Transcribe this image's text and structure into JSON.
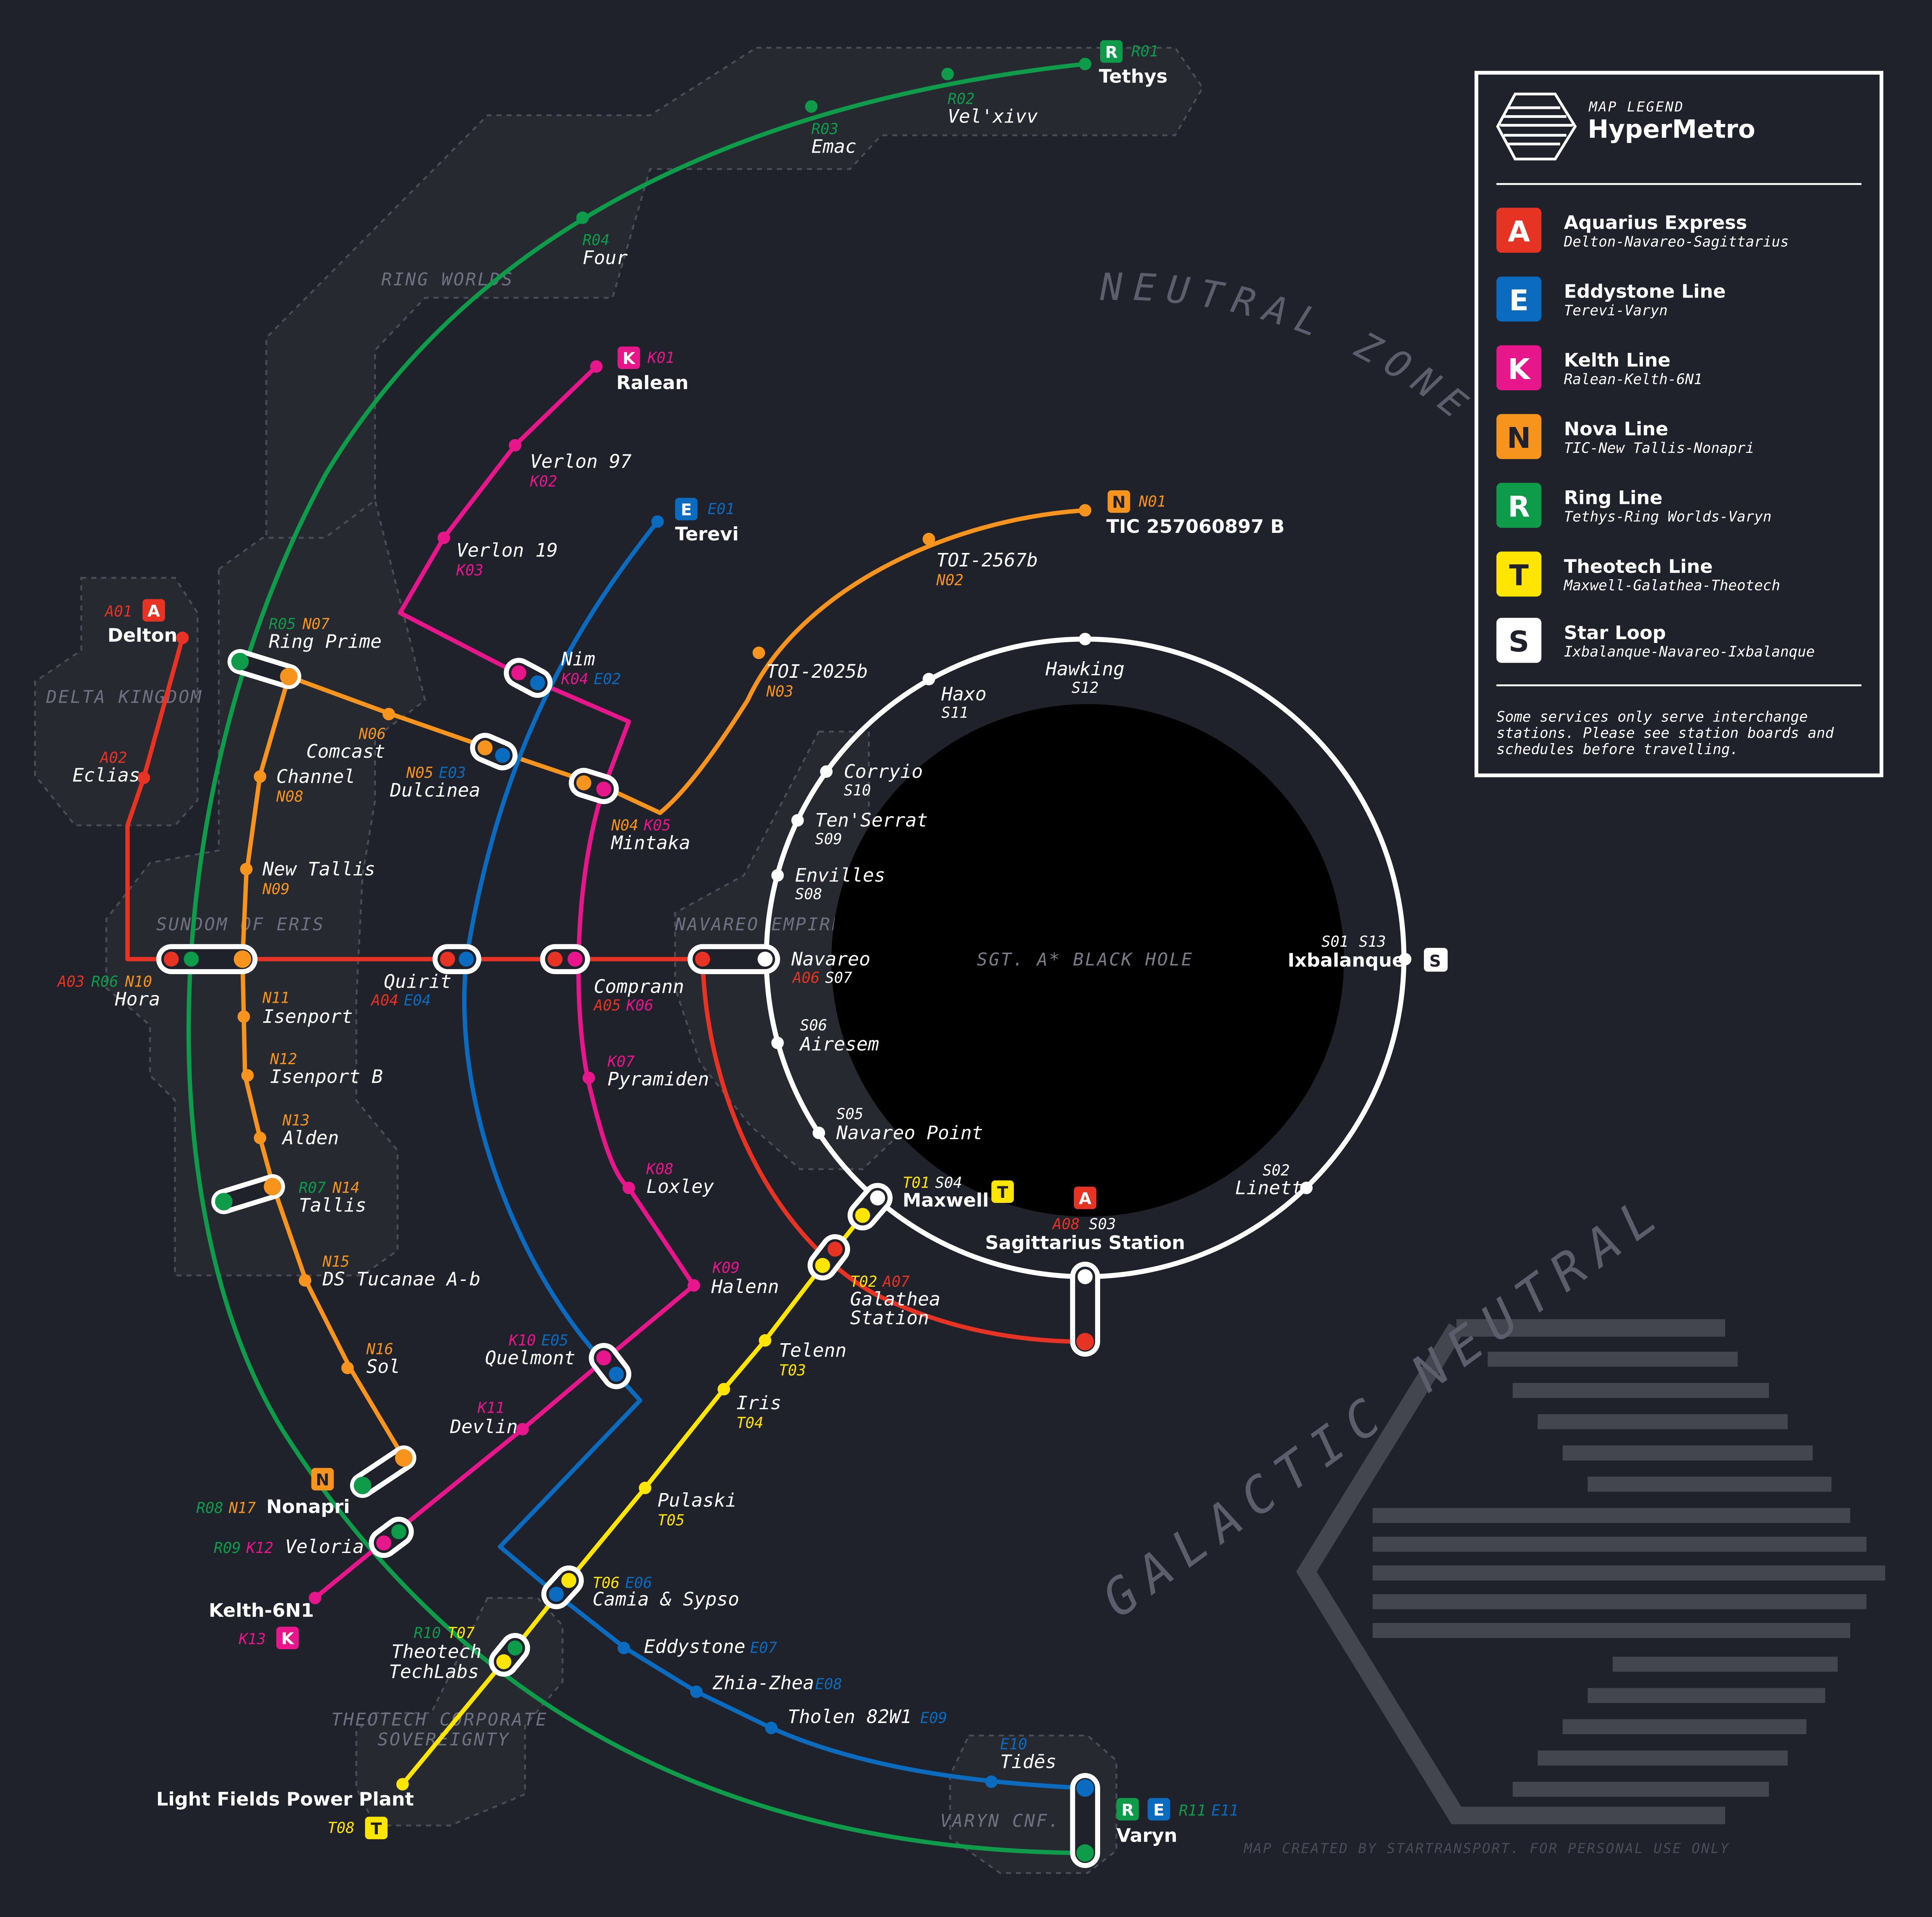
{
  "legend": {
    "subtitle": "MAP LEGEND",
    "title": "HyperMetro",
    "lines": [
      {
        "letter": "A",
        "name": "Aquarius Express",
        "route": "Delton-Navareo-Sagittarius",
        "color": "#e63323"
      },
      {
        "letter": "E",
        "name": "Eddystone Line",
        "route": "Terevi-Varyn",
        "color": "#0a6bbf"
      },
      {
        "letter": "K",
        "name": "Kelth Line",
        "route": "Ralean-Kelth-6N1",
        "color": "#e8168b"
      },
      {
        "letter": "N",
        "name": "Nova Line",
        "route": "TIC-New Tallis-Nonapri",
        "color": "#f7941d"
      },
      {
        "letter": "R",
        "name": "Ring Line",
        "route": "Tethys-Ring Worlds-Varyn",
        "color": "#0e9b4a"
      },
      {
        "letter": "T",
        "name": "Theotech Line",
        "route": "Maxwell-Galathea-Theotech",
        "color": "#ffe500"
      },
      {
        "letter": "S",
        "name": "Star Loop",
        "route": "Ixbalanque-Navareo-Ixbalanque",
        "color": "#ffffff"
      }
    ],
    "note_1": "Some services only serve interchange",
    "note_2": "stations. Please see station boards and",
    "note_3": "schedules before travelling."
  },
  "regions": {
    "ring_worlds": "RING WORLDS",
    "delta_kingdom": "DELTA KINGDOM",
    "sundom_of_eris": "SUNDOM OF ERIS",
    "navareo_empire": "NAVAREO EMPIRE",
    "theotech_1": "THEOTECH CORPORATE",
    "theotech_2": "SOVEREIGNTY",
    "varyn": "VARYN CNF.",
    "neutral_zone_top": "NEUTRAL ZONE",
    "galactic_neutral_zone": "GALACTIC NEUTRAL ZONE",
    "black_hole": "SGT. A* BLACK HOLE"
  },
  "credit": "MAP CREATED BY STARTRANSPORT. FOR PERSONAL USE ONLY",
  "stations": {
    "tethys": {
      "name": "Tethys",
      "code": "R01"
    },
    "velxivv": {
      "name": "Vel'xivv",
      "code": "R02"
    },
    "emac": {
      "name": "Emac",
      "code": "R03"
    },
    "four": {
      "name": "Four",
      "code": "R04"
    },
    "ralean": {
      "name": "Ralean",
      "code": "K01"
    },
    "verlon97": {
      "name": "Verlon 97",
      "code": "K02"
    },
    "verlon19": {
      "name": "Verlon 19",
      "code": "K03"
    },
    "terevi": {
      "name": "Terevi",
      "code": "E01"
    },
    "tic": {
      "name": "TIC 257060897 B",
      "code": "N01"
    },
    "toi2567": {
      "name": "TOI-2567b",
      "code": "N02"
    },
    "toi2025": {
      "name": "TOI-2025b",
      "code": "N03"
    },
    "delton": {
      "name": "Delton",
      "code": "A01"
    },
    "ringprime": {
      "name": "Ring Prime",
      "code1": "R05",
      "code2": "N07"
    },
    "nim": {
      "name": "Nim",
      "code1": "K04",
      "code2": "E02"
    },
    "comcast": {
      "name": "Comcast",
      "code": "N06"
    },
    "channel": {
      "name": "Channel",
      "code": "N08"
    },
    "dulcinea": {
      "name": "Dulcinea",
      "code1": "N05",
      "code2": "E03"
    },
    "eclias": {
      "name": "Eclias",
      "code": "A02"
    },
    "mintaka": {
      "name": "Mintaka",
      "code1": "N04",
      "code2": "K05"
    },
    "newtallis": {
      "name": "New Tallis",
      "code": "N09"
    },
    "hora": {
      "name": "Hora",
      "code1": "A03",
      "code2": "R06",
      "code3": "N10"
    },
    "quirit": {
      "name": "Quirit",
      "code1": "A04",
      "code2": "E04"
    },
    "comprann": {
      "name": "Comprann",
      "code1": "A05",
      "code2": "K06"
    },
    "navareo": {
      "name": "Navareo",
      "code1": "A06",
      "code2": "S07"
    },
    "isenport": {
      "name": "Isenport",
      "code": "N11"
    },
    "isenportb": {
      "name": "Isenport B",
      "code": "N12"
    },
    "alden": {
      "name": "Alden",
      "code": "N13"
    },
    "pyramiden": {
      "name": "Pyramiden",
      "code": "K07"
    },
    "loxley": {
      "name": "Loxley",
      "code": "K08"
    },
    "tallis": {
      "name": "Tallis",
      "code1": "R07",
      "code2": "N14"
    },
    "dstucanae": {
      "name": "DS Tucanae A-b",
      "code": "N15"
    },
    "halenn": {
      "name": "Halenn",
      "code": "K09"
    },
    "sol": {
      "name": "Sol",
      "code": "N16"
    },
    "quelmont": {
      "name": "Quelmont",
      "code1": "K10",
      "code2": "E05"
    },
    "devlin": {
      "name": "Devlin",
      "code": "K11"
    },
    "nonapri": {
      "name": "Nonapri",
      "code1": "R08",
      "code2": "N17"
    },
    "veloria": {
      "name": "Veloria",
      "code1": "R09",
      "code2": "K12"
    },
    "kelth": {
      "name": "Kelth-6N1",
      "code": "K13"
    },
    "maxwell": {
      "name": "Maxwell",
      "code1": "T01",
      "code2": "S04"
    },
    "galathea_1": {
      "name": "Galathea",
      "code1": "T02",
      "code2": "A07"
    },
    "galathea_2": {
      "name": "Station"
    },
    "sagittarius": {
      "name": "Sagittarius Station",
      "code1": "A08",
      "code2": "S03"
    },
    "telenn": {
      "name": "Telenn",
      "code": "T03"
    },
    "iris": {
      "name": "Iris",
      "code": "T04"
    },
    "pulaski": {
      "name": "Pulaski",
      "code": "T05"
    },
    "camia": {
      "name": "Camia & Sypso",
      "code1": "T06",
      "code2": "E06"
    },
    "eddystone": {
      "name": "Eddystone",
      "code": "E07"
    },
    "zhiazhea": {
      "name": "Zhia-Zhea",
      "code": "E08"
    },
    "tholen": {
      "name": "Tholen 82W1",
      "code": "E09"
    },
    "tides": {
      "name": "Tidēs",
      "code": "E10"
    },
    "theotech_1": {
      "name": "Theotech",
      "code1": "R10",
      "code2": "T07"
    },
    "theotech_2": {
      "name": "TechLabs"
    },
    "lightfields": {
      "name": "Light Fields Power Plant",
      "code": "T08"
    },
    "varyn": {
      "name": "Varyn",
      "code1": "R11",
      "code2": "E11"
    },
    "hawking": {
      "name": "Hawking",
      "code": "S12"
    },
    "haxo": {
      "name": "Haxo",
      "code": "S11"
    },
    "corryio": {
      "name": "Corryio",
      "code": "S10"
    },
    "tenserrat": {
      "name": "Ten'Serrat",
      "code": "S09"
    },
    "envilles": {
      "name": "Envilles",
      "code": "S08"
    },
    "airesem": {
      "name": "Airesem",
      "code": "S06"
    },
    "navareopoint": {
      "name": "Navareo Point",
      "code": "S05"
    },
    "linett": {
      "name": "Linett",
      "code": "S02"
    },
    "ixbalanque": {
      "name": "Ixbalanque",
      "code1": "S01",
      "code2": "S13"
    }
  }
}
